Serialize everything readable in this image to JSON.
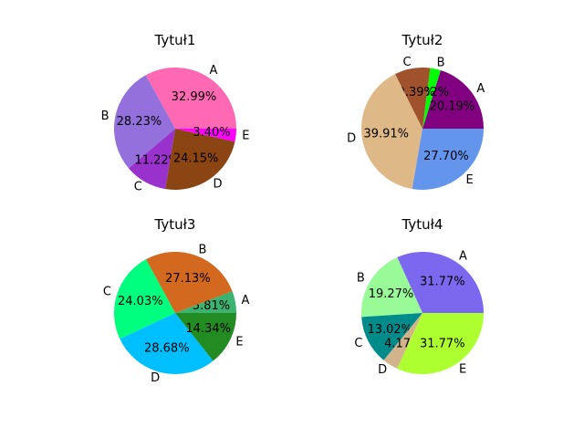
{
  "chart_data": [
    {
      "type": "pie",
      "title": "Tytuł1",
      "categories": [
        "A",
        "B",
        "C",
        "D",
        "E"
      ],
      "values": [
        32.99,
        28.23,
        11.22,
        24.15,
        3.4
      ],
      "value_labels": [
        "32.99%",
        "28.23%",
        "11.22%",
        "24.15%",
        "3.40%"
      ],
      "colors": [
        "#ff69b4",
        "#9370db",
        "#9932cc",
        "#8b4513",
        "#ff00ff"
      ]
    },
    {
      "type": "pie",
      "title": "Tytuł2",
      "categories": [
        "A",
        "B",
        "C",
        "D",
        "E"
      ],
      "values": [
        20.19,
        2.82,
        9.39,
        39.91,
        27.7
      ],
      "value_labels": [
        "20.19%",
        "2.82%",
        "9.39%",
        "39.91%",
        "27.70%"
      ],
      "colors": [
        "#800080",
        "#00ff00",
        "#a0522d",
        "#deb887",
        "#6495ed"
      ]
    },
    {
      "type": "pie",
      "title": "Tytuł3",
      "categories": [
        "A",
        "B",
        "C",
        "D",
        "E"
      ],
      "values": [
        5.81,
        27.13,
        24.03,
        28.68,
        14.34
      ],
      "value_labels": [
        "5.81%",
        "27.13%",
        "24.03%",
        "28.68%",
        "14.34%"
      ],
      "colors": [
        "#3cb371",
        "#d2691e",
        "#00ff7f",
        "#00bfff",
        "#228b22"
      ]
    },
    {
      "type": "pie",
      "title": "Tytuł4",
      "categories": [
        "A",
        "B",
        "C",
        "D",
        "E"
      ],
      "values": [
        31.77,
        19.27,
        13.02,
        4.17,
        31.77
      ],
      "value_labels": [
        "31.77%",
        "19.27%",
        "13.02%",
        "4.17%",
        "31.77%"
      ],
      "colors": [
        "#7b68ee",
        "#98fb98",
        "#008b8b",
        "#d2b48c",
        "#adff2f"
      ]
    }
  ]
}
